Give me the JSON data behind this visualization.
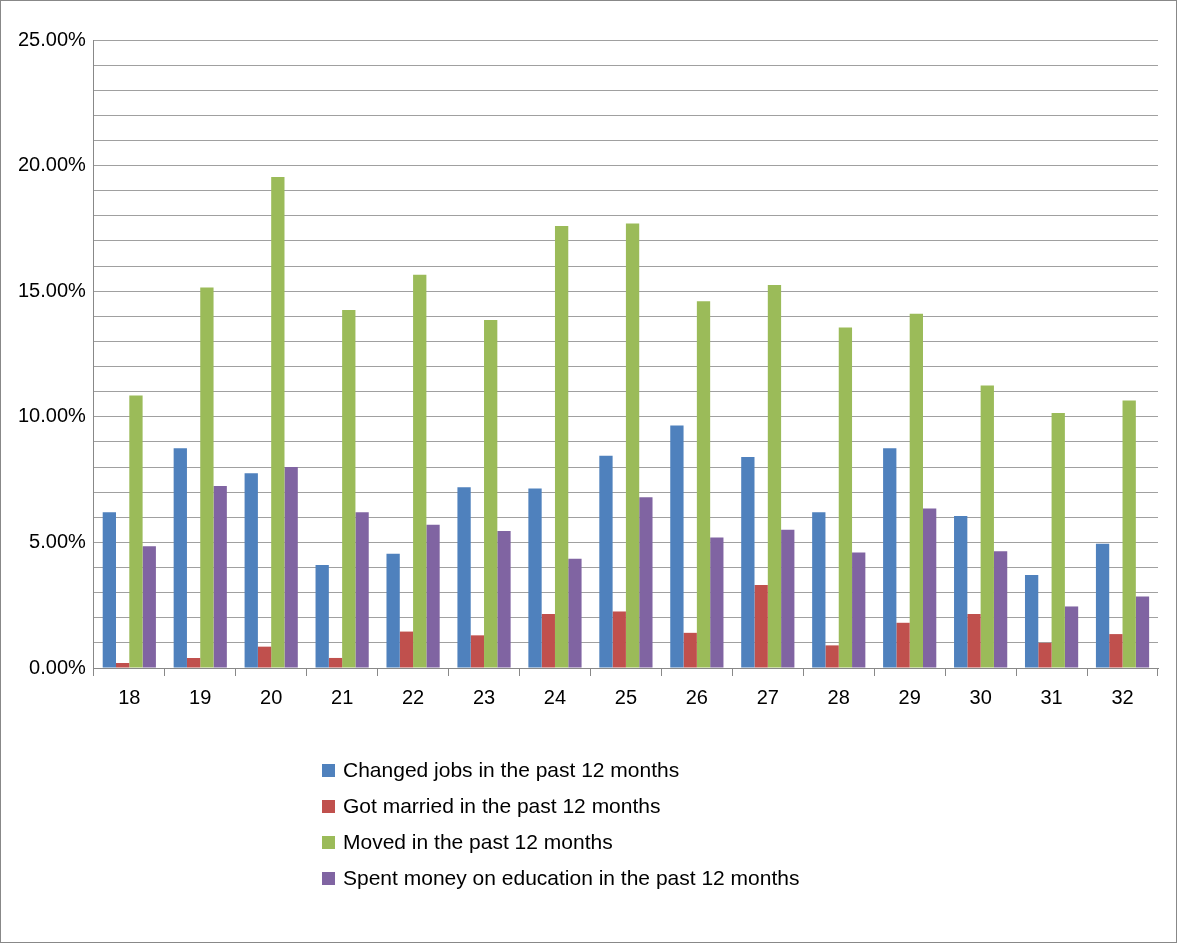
{
  "chart_data": {
    "type": "bar",
    "categories": [
      "18",
      "19",
      "20",
      "21",
      "22",
      "23",
      "24",
      "25",
      "26",
      "27",
      "28",
      "29",
      "30",
      "31",
      "32"
    ],
    "series": [
      {
        "name": "Changed jobs in the past 12 months",
        "color": "#4f81bd",
        "values": [
          6.2,
          8.75,
          7.75,
          4.1,
          4.55,
          7.2,
          7.15,
          8.45,
          9.65,
          8.4,
          6.2,
          8.75,
          6.05,
          3.7,
          4.95
        ]
      },
      {
        "name": "Got married in the past 12 months",
        "color": "#c0504d",
        "values": [
          0.2,
          0.4,
          0.85,
          0.4,
          1.45,
          1.3,
          2.15,
          2.25,
          1.4,
          3.3,
          0.9,
          1.8,
          2.15,
          1.0,
          1.35
        ]
      },
      {
        "name": "Moved in the past 12 months",
        "color": "#9bbb59",
        "values": [
          10.85,
          15.15,
          19.55,
          14.25,
          15.65,
          13.85,
          17.6,
          17.7,
          14.6,
          15.25,
          13.55,
          14.1,
          11.25,
          10.15,
          10.65
        ]
      },
      {
        "name": "Spent money on education in the past 12 months",
        "color": "#8064a2",
        "values": [
          4.85,
          7.25,
          8.0,
          6.2,
          5.7,
          5.45,
          4.35,
          6.8,
          5.2,
          5.5,
          4.6,
          6.35,
          4.65,
          2.45,
          2.85
        ]
      }
    ],
    "ylim": [
      0,
      25
    ],
    "yticks": [
      {
        "value": 0,
        "label": "0.00%"
      },
      {
        "value": 1,
        "label": null
      },
      {
        "value": 2,
        "label": null
      },
      {
        "value": 3,
        "label": null
      },
      {
        "value": 4,
        "label": null
      },
      {
        "value": 5,
        "label": "5.00%"
      },
      {
        "value": 6,
        "label": null
      },
      {
        "value": 7,
        "label": null
      },
      {
        "value": 8,
        "label": null
      },
      {
        "value": 9,
        "label": null
      },
      {
        "value": 10,
        "label": "10.00%"
      },
      {
        "value": 11,
        "label": null
      },
      {
        "value": 12,
        "label": null
      },
      {
        "value": 13,
        "label": null
      },
      {
        "value": 14,
        "label": null
      },
      {
        "value": 15,
        "label": "15.00%"
      },
      {
        "value": 16,
        "label": null
      },
      {
        "value": 17,
        "label": null
      },
      {
        "value": 18,
        "label": null
      },
      {
        "value": 19,
        "label": null
      },
      {
        "value": 20,
        "label": "20.00%"
      },
      {
        "value": 21,
        "label": null
      },
      {
        "value": 22,
        "label": null
      },
      {
        "value": 23,
        "label": null
      },
      {
        "value": 24,
        "label": null
      },
      {
        "value": 25,
        "label": "25.00%"
      }
    ],
    "grid": "y",
    "legend": "bottom"
  }
}
